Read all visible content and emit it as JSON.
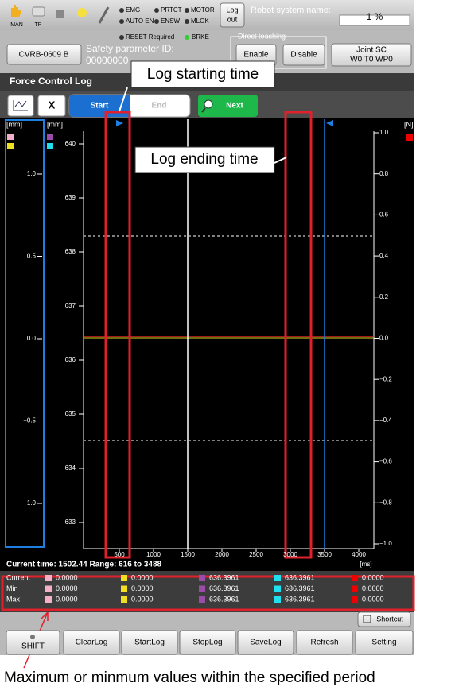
{
  "header": {
    "mode_icons": [
      "MAN",
      "TP"
    ],
    "status": [
      "EMG",
      "PRTCT",
      "MOTOR",
      "AUTO EN",
      "ENSW",
      "MLOK"
    ],
    "logout": [
      "Log",
      "out"
    ],
    "robot_system_label": "Robot system name:",
    "speed": "1 %"
  },
  "info": {
    "robot_model": "CVRB-0609 B",
    "reset": "RESET Required",
    "brake": "BRKE",
    "safety_label": "Safety parameter ID:",
    "safety_id": "00000000",
    "direct_teaching": "Direct teaching",
    "enable": "Enable",
    "disable": "Disable",
    "coord": [
      "Joint   SC",
      "W0 T0 WP0"
    ]
  },
  "title": "Force Control Log",
  "toolbar": {
    "close": "X",
    "start": "Start",
    "end": "End",
    "next": "Next"
  },
  "callouts": {
    "start": "Log starting time",
    "end": "Log ending time",
    "minmax": "Maximum or minmum values within the specified period"
  },
  "plot": {
    "left_unit": "[mm]",
    "left_ticks": [
      "1.0",
      "0.5",
      "0.0",
      "−0.5",
      "−1.0"
    ],
    "mid_unit": "[mm]",
    "mid_ticks": [
      "640",
      "639",
      "638",
      "637",
      "636",
      "635",
      "634",
      "633"
    ],
    "right_unit": "[N]",
    "right_ticks": [
      "1.0",
      "0.8",
      "0.6",
      "0.4",
      "0.2",
      "0.0",
      "−0.2",
      "−0.4",
      "−0.6",
      "−0.8",
      "−1.0"
    ],
    "x_ticks": [
      "500",
      "1000",
      "1500",
      "2000",
      "2500",
      "3000",
      "3500",
      "4000"
    ],
    "x_unit": "[ms]"
  },
  "status_line": "Current time: 1502.44  Range: 616 to 3488",
  "table": {
    "rows": [
      [
        "Current",
        "0.0000",
        "0.0000",
        "636.3961",
        "636.3961",
        "0.0000"
      ],
      [
        "Min",
        "0.0000",
        "0.0000",
        "636.3961",
        "636.3961",
        "0.0000"
      ],
      [
        "Max",
        "0.0000",
        "0.0000",
        "636.3961",
        "636.3961",
        "0.0000"
      ]
    ]
  },
  "shortcut": "Shortcut",
  "buttons": [
    "SHIFT",
    "ClearLog",
    "StartLog",
    "StopLog",
    "SaveLog",
    "Refresh",
    "Setting"
  ]
}
